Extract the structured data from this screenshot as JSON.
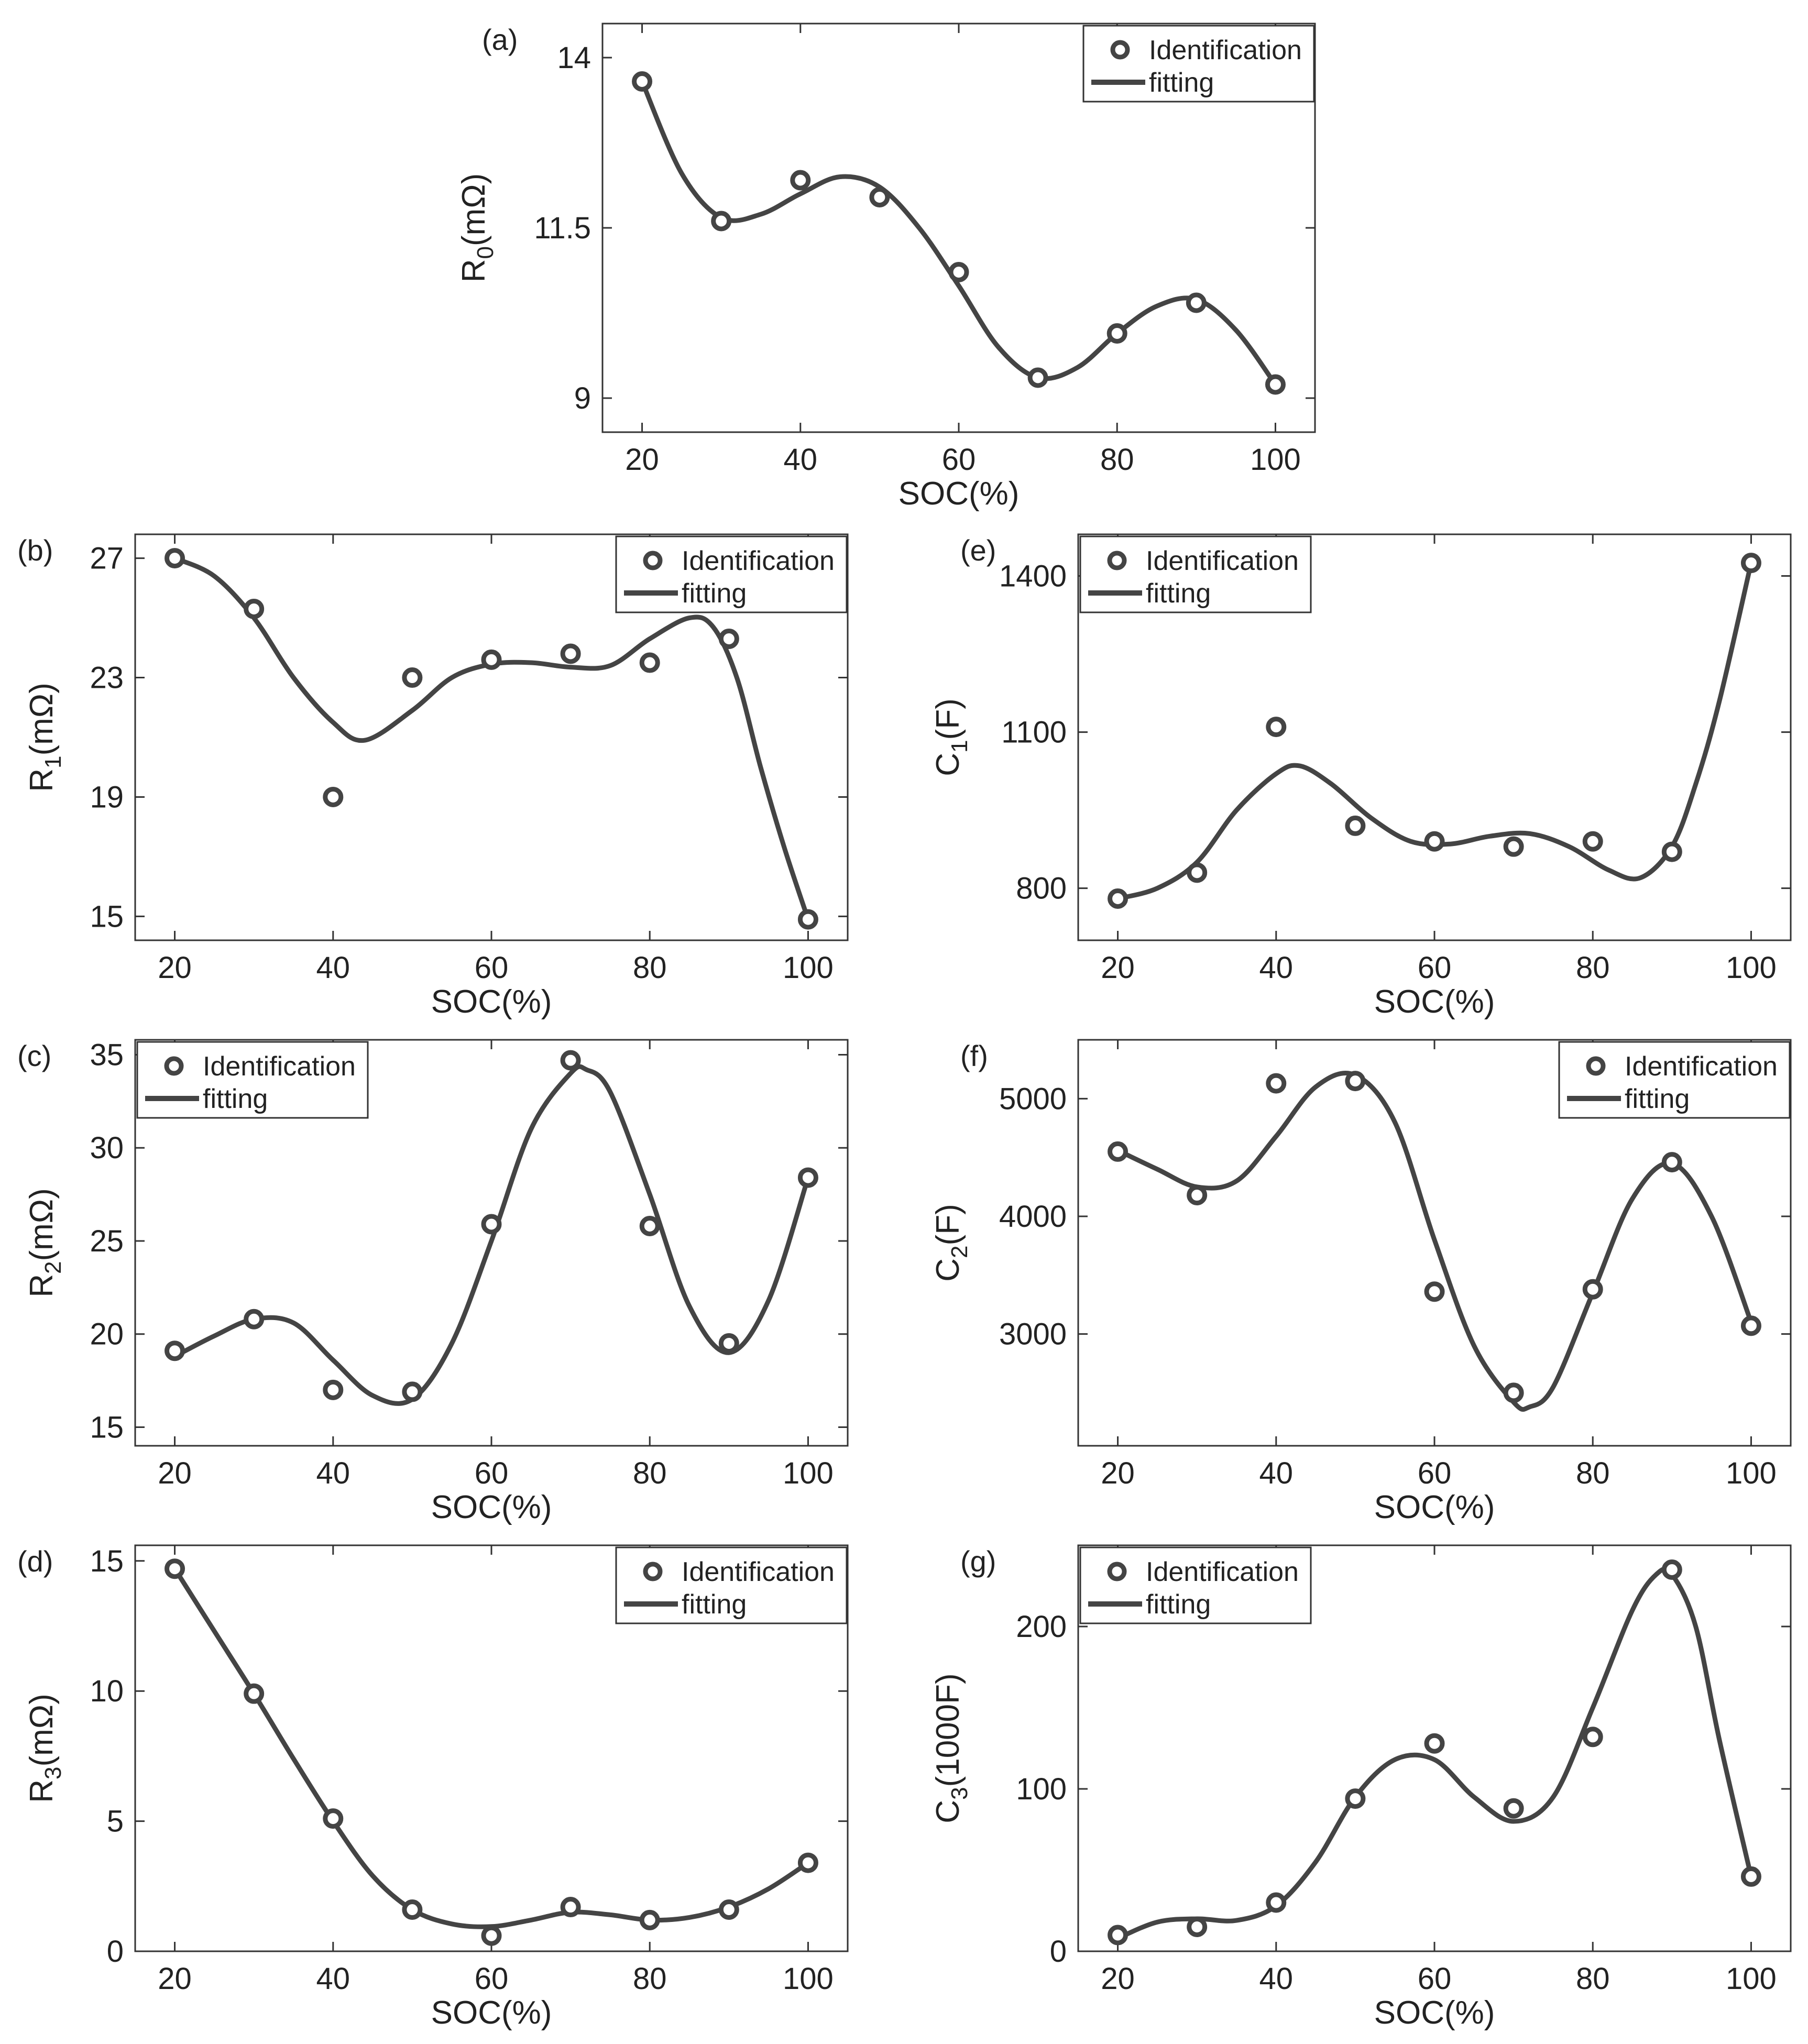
{
  "figure": {
    "series_names": {
      "markers": "Identification",
      "line": "fitting"
    },
    "colors": {
      "ink": "#444444",
      "axis": "#333333",
      "text": "#222222",
      "background": "#ffffff"
    }
  },
  "chart_data": [
    {
      "id": "a",
      "panel_label": "(a)",
      "type": "scatter+line",
      "xlabel": "SOC(%)",
      "ylabel_main": "R",
      "ylabel_sub": "0",
      "ylabel_unit": "(mΩ)",
      "xlim": [
        15,
        105
      ],
      "ylim": [
        8.5,
        14.5
      ],
      "xticks": [
        20,
        40,
        60,
        80,
        100
      ],
      "xtick_labels": [
        "20",
        "40",
        "60",
        "80",
        "100"
      ],
      "yticks": [
        9,
        11.5,
        14
      ],
      "ytick_labels": [
        "9",
        "11.5",
        "14"
      ],
      "legend": {
        "position": "top-right",
        "markers": "Identification",
        "line": "fitting"
      },
      "series": [
        {
          "name": "Identification",
          "x": [
            20,
            30,
            40,
            50,
            60,
            70,
            80,
            90,
            100
          ],
          "y": [
            13.65,
            11.6,
            12.2,
            11.95,
            10.85,
            9.3,
            9.95,
            10.4,
            9.2
          ]
        },
        {
          "name": "fitting",
          "x": [
            20,
            25,
            30,
            35,
            40,
            45,
            50,
            55,
            60,
            65,
            70,
            75,
            80,
            85,
            90,
            95,
            100
          ],
          "y": [
            13.65,
            12.3,
            11.65,
            11.7,
            12.0,
            12.25,
            12.1,
            11.5,
            10.65,
            9.75,
            9.3,
            9.45,
            9.95,
            10.35,
            10.45,
            10.0,
            9.2
          ]
        }
      ]
    },
    {
      "id": "b",
      "panel_label": "(b)",
      "type": "scatter+line",
      "xlabel": "SOC(%)",
      "ylabel_main": "R",
      "ylabel_sub": "1",
      "ylabel_unit": "(mΩ)",
      "xlim": [
        15,
        105
      ],
      "ylim": [
        14.2,
        27.8
      ],
      "xticks": [
        20,
        40,
        60,
        80,
        100
      ],
      "xtick_labels": [
        "20",
        "40",
        "60",
        "80",
        "100"
      ],
      "yticks": [
        15,
        19,
        23,
        27
      ],
      "ytick_labels": [
        "15",
        "19",
        "23",
        "27"
      ],
      "legend": {
        "position": "top-right",
        "markers": "Identification",
        "line": "fitting"
      },
      "series": [
        {
          "name": "Identification",
          "x": [
            20,
            30,
            40,
            50,
            60,
            70,
            80,
            90,
            100
          ],
          "y": [
            27.0,
            25.3,
            19.0,
            23.0,
            23.6,
            23.8,
            23.5,
            24.3,
            14.9
          ]
        },
        {
          "name": "fitting",
          "x": [
            20,
            25,
            30,
            35,
            40,
            44,
            50,
            55,
            60,
            65,
            70,
            75,
            80,
            85,
            88,
            91,
            94,
            97,
            100
          ],
          "y": [
            27.0,
            26.4,
            25.0,
            23.0,
            21.5,
            20.9,
            21.9,
            23.0,
            23.45,
            23.5,
            23.35,
            23.4,
            24.3,
            25.0,
            24.7,
            23.0,
            20.0,
            17.3,
            14.9
          ]
        }
      ]
    },
    {
      "id": "e",
      "panel_label": "(e)",
      "type": "scatter+line",
      "xlabel": "SOC(%)",
      "ylabel_main": "C",
      "ylabel_sub": "1",
      "ylabel_unit": "(F)",
      "xlim": [
        15,
        105
      ],
      "ylim": [
        700,
        1480
      ],
      "xticks": [
        20,
        40,
        60,
        80,
        100
      ],
      "xtick_labels": [
        "20",
        "40",
        "60",
        "80",
        "100"
      ],
      "yticks": [
        800,
        1100,
        1400
      ],
      "ytick_labels": [
        "800",
        "1100",
        "1400"
      ],
      "legend": {
        "position": "top-left",
        "markers": "Identification",
        "line": "fitting"
      },
      "series": [
        {
          "name": "Identification",
          "x": [
            20,
            30,
            40,
            50,
            60,
            70,
            80,
            90,
            100
          ],
          "y": [
            780,
            830,
            1110,
            920,
            890,
            880,
            890,
            870,
            1425
          ]
        },
        {
          "name": "fitting",
          "x": [
            20,
            25,
            30,
            35,
            40,
            43,
            47,
            52,
            57,
            62,
            67,
            72,
            77,
            82,
            86,
            90,
            93,
            96,
            100
          ],
          "y": [
            780,
            800,
            850,
            950,
            1020,
            1035,
            1000,
            935,
            890,
            885,
            900,
            905,
            880,
            835,
            820,
            880,
            1000,
            1160,
            1425
          ]
        }
      ]
    },
    {
      "id": "c",
      "panel_label": "(c)",
      "type": "scatter+line",
      "xlabel": "SOC(%)",
      "ylabel_main": "R",
      "ylabel_sub": "2",
      "ylabel_unit": "(mΩ)",
      "xlim": [
        15,
        105
      ],
      "ylim": [
        14,
        35.8
      ],
      "xticks": [
        20,
        40,
        60,
        80,
        100
      ],
      "xtick_labels": [
        "20",
        "40",
        "60",
        "80",
        "100"
      ],
      "yticks": [
        15,
        20,
        25,
        30,
        35
      ],
      "ytick_labels": [
        "15",
        "20",
        "25",
        "30",
        "35"
      ],
      "legend": {
        "position": "top-left",
        "markers": "Identification",
        "line": "fitting"
      },
      "series": [
        {
          "name": "Identification",
          "x": [
            20,
            30,
            40,
            50,
            60,
            70,
            80,
            90,
            100
          ],
          "y": [
            19.1,
            20.8,
            17.0,
            16.9,
            25.9,
            34.7,
            25.8,
            19.5,
            28.4
          ]
        },
        {
          "name": "fitting",
          "x": [
            20,
            25,
            30,
            35,
            40,
            45,
            50,
            55,
            60,
            65,
            70,
            72,
            75,
            80,
            85,
            90,
            95,
            100
          ],
          "y": [
            18.8,
            19.9,
            20.8,
            20.6,
            18.6,
            16.7,
            16.5,
            19.5,
            25.0,
            31.0,
            34.0,
            34.2,
            33.0,
            27.5,
            21.5,
            19.0,
            21.8,
            28.4
          ]
        }
      ]
    },
    {
      "id": "f",
      "panel_label": "(f)",
      "type": "scatter+line",
      "xlabel": "SOC(%)",
      "ylabel_main": "C",
      "ylabel_sub": "2",
      "ylabel_unit": "(F)",
      "xlim": [
        15,
        105
      ],
      "ylim": [
        2050,
        5500
      ],
      "xticks": [
        20,
        40,
        60,
        80,
        100
      ],
      "xtick_labels": [
        "20",
        "40",
        "60",
        "80",
        "100"
      ],
      "yticks": [
        3000,
        4000,
        5000
      ],
      "ytick_labels": [
        "3000",
        "4000",
        "5000"
      ],
      "legend": {
        "position": "top-right",
        "markers": "Identification",
        "line": "fitting"
      },
      "series": [
        {
          "name": "Identification",
          "x": [
            20,
            30,
            40,
            50,
            60,
            70,
            80,
            90,
            100
          ],
          "y": [
            4550,
            4180,
            5130,
            5150,
            3360,
            2500,
            3380,
            4460,
            3070
          ]
        },
        {
          "name": "fitting",
          "x": [
            20,
            25,
            30,
            35,
            40,
            45,
            50,
            55,
            60,
            65,
            70,
            72,
            75,
            80,
            85,
            90,
            95,
            100
          ],
          "y": [
            4560,
            4400,
            4250,
            4300,
            4680,
            5100,
            5200,
            4800,
            3800,
            2900,
            2420,
            2380,
            2550,
            3350,
            4150,
            4450,
            4000,
            3100
          ]
        }
      ]
    },
    {
      "id": "d",
      "panel_label": "(d)",
      "type": "scatter+line",
      "xlabel": "SOC(%)",
      "ylabel_main": "R",
      "ylabel_sub": "3",
      "ylabel_unit": "(mΩ)",
      "xlim": [
        15,
        105
      ],
      "ylim": [
        0,
        15.6
      ],
      "xticks": [
        20,
        40,
        60,
        80,
        100
      ],
      "xtick_labels": [
        "20",
        "40",
        "60",
        "80",
        "100"
      ],
      "yticks": [
        0,
        5,
        10,
        15
      ],
      "ytick_labels": [
        "0",
        "5",
        "10",
        "15"
      ],
      "legend": {
        "position": "top-right",
        "markers": "Identification",
        "line": "fitting"
      },
      "series": [
        {
          "name": "Identification",
          "x": [
            20,
            30,
            40,
            50,
            60,
            70,
            80,
            90,
            100
          ],
          "y": [
            14.7,
            9.9,
            5.1,
            1.6,
            0.6,
            1.7,
            1.2,
            1.6,
            3.4
          ]
        },
        {
          "name": "fitting",
          "x": [
            20,
            25,
            30,
            35,
            40,
            45,
            50,
            55,
            60,
            65,
            70,
            75,
            80,
            85,
            90,
            95,
            100
          ],
          "y": [
            14.7,
            12.3,
            9.9,
            7.4,
            5.0,
            2.9,
            1.6,
            1.05,
            0.95,
            1.2,
            1.5,
            1.4,
            1.2,
            1.3,
            1.7,
            2.4,
            3.4
          ]
        }
      ]
    },
    {
      "id": "g",
      "panel_label": "(g)",
      "type": "scatter+line",
      "xlabel": "SOC(%)",
      "ylabel_main": "C",
      "ylabel_sub": "3",
      "ylabel_unit": "(1000F)",
      "xlim": [
        15,
        105
      ],
      "ylim": [
        0,
        250
      ],
      "xticks": [
        20,
        40,
        60,
        80,
        100
      ],
      "xtick_labels": [
        "20",
        "40",
        "60",
        "80",
        "100"
      ],
      "yticks": [
        0,
        100,
        200
      ],
      "ytick_labels": [
        "0",
        "100",
        "200"
      ],
      "legend": {
        "position": "top-left",
        "markers": "Identification",
        "line": "fitting"
      },
      "series": [
        {
          "name": "Identification",
          "x": [
            20,
            30,
            40,
            50,
            60,
            70,
            80,
            90,
            100
          ],
          "y": [
            10,
            15,
            30,
            94,
            128,
            88,
            132,
            235,
            46
          ]
        },
        {
          "name": "fitting",
          "x": [
            20,
            25,
            30,
            35,
            40,
            45,
            50,
            55,
            60,
            65,
            70,
            75,
            80,
            85,
            88,
            90,
            93,
            96,
            100
          ],
          "y": [
            8,
            18,
            20,
            19,
            28,
            55,
            95,
            118,
            118,
            95,
            80,
            95,
            150,
            210,
            232,
            232,
            200,
            130,
            46
          ]
        }
      ]
    }
  ]
}
